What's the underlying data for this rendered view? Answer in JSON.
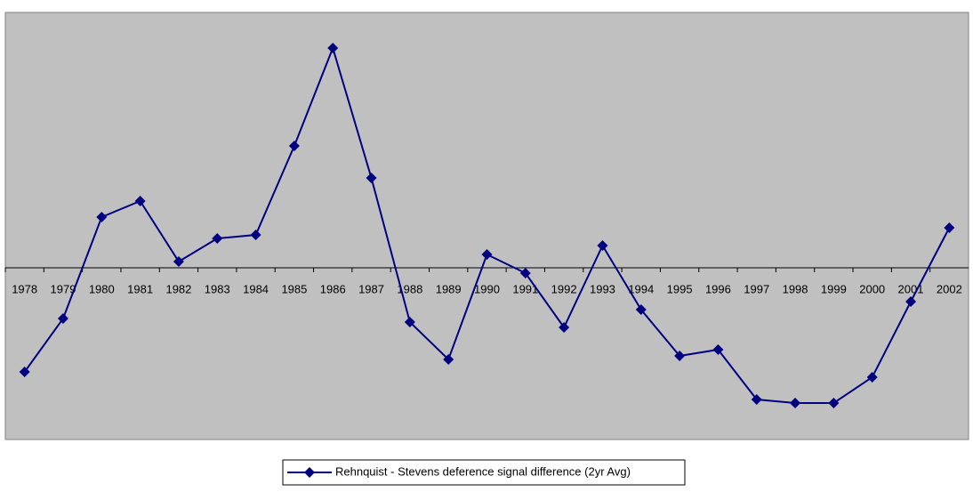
{
  "chart_data": {
    "type": "line",
    "categories": [
      "1978",
      "1979",
      "1980",
      "1981",
      "1982",
      "1983",
      "1984",
      "1985",
      "1986",
      "1987",
      "1988",
      "1989",
      "1990",
      "1991",
      "1992",
      "1993",
      "1994",
      "1995",
      "1996",
      "1997",
      "1998",
      "1999",
      "2000",
      "2001",
      "2002"
    ],
    "series": [
      {
        "name": "Rehnquist - Stevens deference signal difference (2yr Avg)",
        "color": "#000080",
        "values": [
          -1.17,
          -0.57,
          0.57,
          0.75,
          0.07,
          0.33,
          0.37,
          1.37,
          2.47,
          1.01,
          -0.61,
          -1.03,
          0.15,
          -0.06,
          -0.67,
          0.25,
          -0.47,
          -0.99,
          -0.92,
          -1.48,
          -1.52,
          -1.52,
          -1.23,
          -0.38,
          0.45
        ]
      }
    ],
    "ylim": [
      -1.93,
      2.87
    ],
    "background": "#c0c0c0"
  }
}
